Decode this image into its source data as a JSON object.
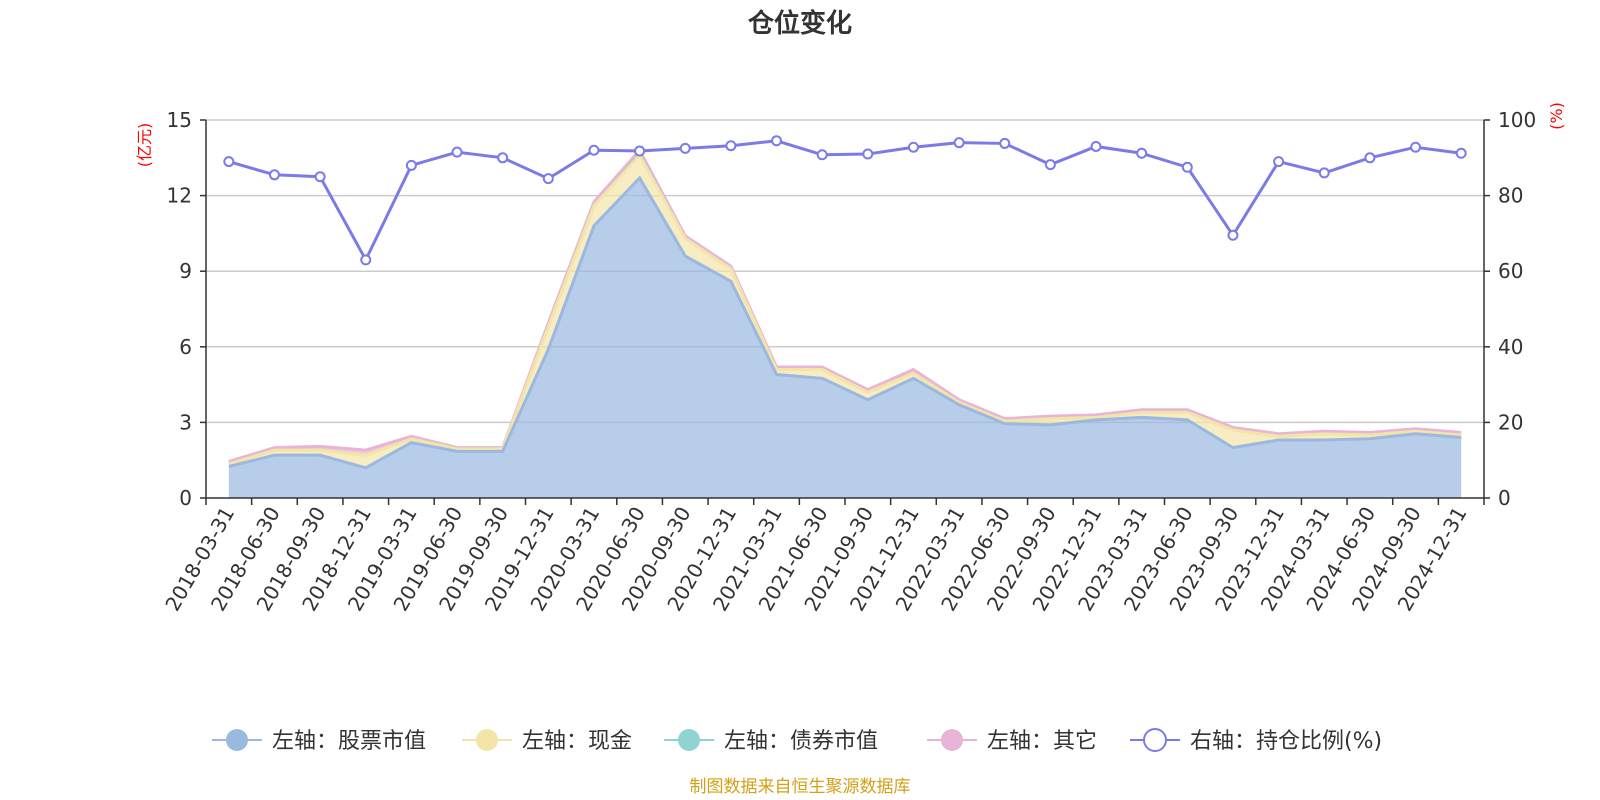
{
  "chart_data": {
    "type": "area",
    "title": "仓位变化",
    "categories": [
      "2018-03-31",
      "2018-06-30",
      "2018-09-30",
      "2018-12-31",
      "2019-03-31",
      "2019-06-30",
      "2019-09-30",
      "2019-12-31",
      "2020-03-31",
      "2020-06-30",
      "2020-09-30",
      "2020-12-31",
      "2021-03-31",
      "2021-06-30",
      "2021-09-30",
      "2021-12-31",
      "2022-03-31",
      "2022-06-30",
      "2022-09-30",
      "2022-12-31",
      "2023-03-31",
      "2023-06-30",
      "2023-09-30",
      "2023-12-31",
      "2024-03-31",
      "2024-06-30",
      "2024-09-30",
      "2024-12-31"
    ],
    "left_axis": {
      "unit": "(亿元)",
      "ylim": [
        0,
        15
      ],
      "ticks": [
        "0",
        "3",
        "6",
        "9",
        "12",
        "15"
      ]
    },
    "right_axis": {
      "unit": "(%)",
      "ylim": [
        0,
        100
      ],
      "ticks": [
        "0",
        "20",
        "40",
        "60",
        "80",
        "100"
      ]
    },
    "series": [
      {
        "name": "左轴：股票市值",
        "axis": "left",
        "stack": true,
        "color": "#9ab8e0",
        "values": [
          1.25,
          1.7,
          1.7,
          1.2,
          2.2,
          1.85,
          1.85,
          5.9,
          10.8,
          12.7,
          9.6,
          8.6,
          4.9,
          4.75,
          3.9,
          4.75,
          3.7,
          2.95,
          2.9,
          3.1,
          3.2,
          3.1,
          2.0,
          2.3,
          2.3,
          2.35,
          2.55,
          2.4
        ]
      },
      {
        "name": "左轴：现金",
        "axis": "left",
        "stack": true,
        "color": "#f5e4a8",
        "values": [
          0.1,
          0.2,
          0.2,
          0.5,
          0.15,
          0.1,
          0.1,
          0.9,
          0.8,
          0.9,
          0.7,
          0.5,
          0.2,
          0.35,
          0.3,
          0.2,
          0.1,
          0.1,
          0.25,
          0.1,
          0.2,
          0.3,
          0.7,
          0.15,
          0.25,
          0.15,
          0.1,
          0.1
        ]
      },
      {
        "name": "左轴：债券市值",
        "axis": "left",
        "stack": true,
        "color": "#8fd3d3",
        "values": [
          0,
          0,
          0,
          0,
          0,
          0,
          0,
          0,
          0,
          0.05,
          0,
          0,
          0,
          0,
          0,
          0,
          0,
          0,
          0,
          0,
          0,
          0,
          0,
          0,
          0,
          0,
          0,
          0
        ]
      },
      {
        "name": "左轴：其它",
        "axis": "left",
        "stack": true,
        "color": "#e8b4d8",
        "values": [
          0.1,
          0.1,
          0.15,
          0.2,
          0.1,
          0.05,
          0.05,
          0.15,
          0.15,
          0.15,
          0.1,
          0.1,
          0.1,
          0.1,
          0.1,
          0.15,
          0.1,
          0.1,
          0.1,
          0.1,
          0.1,
          0.1,
          0.1,
          0.1,
          0.1,
          0.1,
          0.1,
          0.1
        ]
      },
      {
        "name": "右轴：持仓比例(%)",
        "axis": "right",
        "stack": false,
        "color": "#7b7be8",
        "values": [
          89,
          85.5,
          85,
          63,
          88,
          91.5,
          90,
          84.5,
          92,
          91.8,
          92.5,
          93.2,
          94.5,
          90.8,
          91,
          92.8,
          94,
          93.8,
          88.2,
          93,
          91.2,
          87.5,
          69.5,
          89,
          86,
          90,
          92.8,
          91.2
        ]
      }
    ],
    "legend_position": "bottom",
    "source": "制图数据来自恒生聚源数据库"
  }
}
